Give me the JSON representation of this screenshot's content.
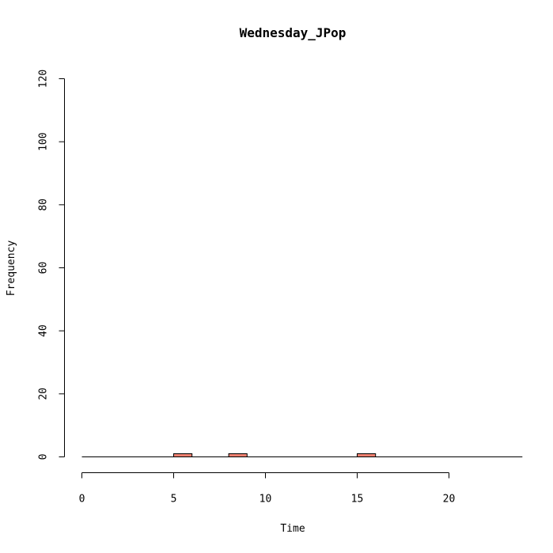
{
  "chart_data": {
    "type": "bar",
    "title": "Wednesday_JPop",
    "xlabel": "Time",
    "ylabel": "Frequency",
    "xlim": [
      -0.5,
      24
    ],
    "ylim": [
      0,
      120
    ],
    "x_ticks": [
      0,
      5,
      10,
      15,
      20
    ],
    "y_ticks": [
      0,
      20,
      40,
      60,
      80,
      100,
      120
    ],
    "bin_width": 1,
    "bins": [
      0,
      1,
      2,
      3,
      4,
      5,
      6,
      7,
      8,
      9,
      10,
      11,
      12,
      13,
      14,
      15,
      16,
      17,
      18,
      19,
      20,
      21,
      22,
      23
    ],
    "values": [
      0,
      0,
      0,
      0,
      0,
      1,
      0,
      0,
      1,
      0,
      0,
      0,
      0,
      0,
      0,
      1,
      0,
      0,
      0,
      0,
      0,
      0,
      0,
      0
    ],
    "bar_color": "#F08070",
    "grid": false
  }
}
